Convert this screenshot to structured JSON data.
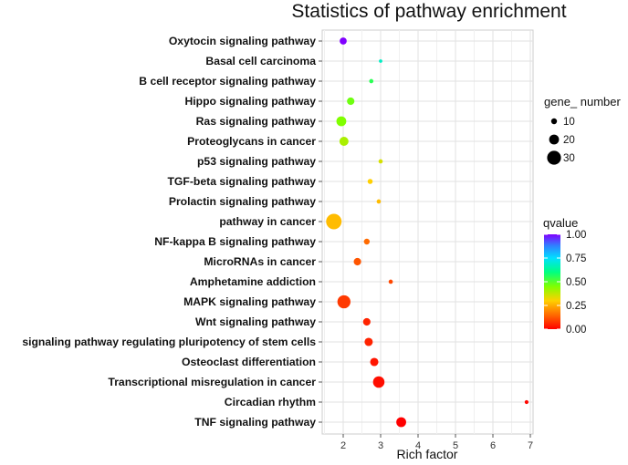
{
  "chart_data": {
    "type": "scatter",
    "title": "Statistics of pathway enrichment",
    "xlabel": "Rich factor",
    "ylabel": "",
    "xlim": [
      1.5,
      7.1
    ],
    "xticks": [
      2,
      3,
      4,
      5,
      6,
      7
    ],
    "grid": true,
    "categories": [
      "Oxytocin signaling pathway",
      "Basal cell carcinoma",
      "B cell receptor signaling pathway",
      "Hippo signaling pathway ",
      "Ras signaling pathway",
      "Proteoglycans in cancer",
      "p53 signaling pathway",
      "TGF-beta signaling pathway",
      "Prolactin signaling pathway",
      "pathway in cancer",
      "NF-kappa B signaling pathway",
      "MicroRNAs in cancer",
      "Amphetamine addiction",
      "MAPK signaling pathway",
      "Wnt signaling pathway",
      "signaling pathway regulating pluripotency of stem cells",
      "Osteoclast differentiation",
      "Transcriptional misregulation in cancer",
      "Circadian rhythm",
      "TNF signaling pathway"
    ],
    "points": [
      {
        "pathway": "Oxytocin signaling pathway",
        "rich_factor": 2.0,
        "gene_number": 13,
        "qvalue": 1.0
      },
      {
        "pathway": "Basal cell carcinoma",
        "rich_factor": 3.0,
        "gene_number": 4,
        "qvalue": 0.68
      },
      {
        "pathway": "B cell receptor signaling pathway",
        "rich_factor": 2.75,
        "gene_number": 6,
        "qvalue": 0.55
      },
      {
        "pathway": "Hippo signaling pathway ",
        "rich_factor": 2.2,
        "gene_number": 14,
        "qvalue": 0.47
      },
      {
        "pathway": "Ras signaling pathway",
        "rich_factor": 1.95,
        "gene_number": 20,
        "qvalue": 0.45
      },
      {
        "pathway": "Proteoglycans in cancer",
        "rich_factor": 2.02,
        "gene_number": 18,
        "qvalue": 0.4
      },
      {
        "pathway": "p53 signaling pathway",
        "rich_factor": 3.0,
        "gene_number": 6,
        "qvalue": 0.35
      },
      {
        "pathway": "TGF-beta signaling pathway",
        "rich_factor": 2.72,
        "gene_number": 8,
        "qvalue": 0.3
      },
      {
        "pathway": "Prolactin signaling pathway",
        "rich_factor": 2.95,
        "gene_number": 6,
        "qvalue": 0.27
      },
      {
        "pathway": "pathway in cancer",
        "rich_factor": 1.75,
        "gene_number": 34,
        "qvalue": 0.27
      },
      {
        "pathway": "NF-kappa B signaling pathway",
        "rich_factor": 2.63,
        "gene_number": 10,
        "qvalue": 0.15
      },
      {
        "pathway": "MicroRNAs in cancer",
        "rich_factor": 2.38,
        "gene_number": 14,
        "qvalue": 0.12
      },
      {
        "pathway": "Amphetamine addiction",
        "rich_factor": 3.27,
        "gene_number": 6,
        "qvalue": 0.1
      },
      {
        "pathway": "MAPK signaling pathway",
        "rich_factor": 2.02,
        "gene_number": 28,
        "qvalue": 0.08
      },
      {
        "pathway": "Wnt signaling pathway",
        "rich_factor": 2.63,
        "gene_number": 14,
        "qvalue": 0.05
      },
      {
        "pathway": "signaling pathway regulating pluripotency of stem cells",
        "rich_factor": 2.68,
        "gene_number": 16,
        "qvalue": 0.05
      },
      {
        "pathway": "Osteoclast differentiation",
        "rich_factor": 2.83,
        "gene_number": 16,
        "qvalue": 0.03
      },
      {
        "pathway": "Transcriptional misregulation in cancer",
        "rich_factor": 2.95,
        "gene_number": 24,
        "qvalue": 0.02
      },
      {
        "pathway": "Circadian rhythm",
        "rich_factor": 6.9,
        "gene_number": 5,
        "qvalue": 0.01
      },
      {
        "pathway": "TNF signaling pathway",
        "rich_factor": 3.55,
        "gene_number": 20,
        "qvalue": 0.0
      }
    ],
    "size_legend": {
      "title": "gene_ number",
      "values": [
        10,
        20,
        30
      ]
    },
    "color_legend": {
      "title": "qvalue",
      "ticks": [
        "1.00",
        "0.75",
        "0.50",
        "0.25",
        "0.00"
      ],
      "tick_values": [
        1.0,
        0.75,
        0.5,
        0.25,
        0.0
      ],
      "low_color": "#ff0000",
      "high_color": "#8000ff"
    }
  }
}
